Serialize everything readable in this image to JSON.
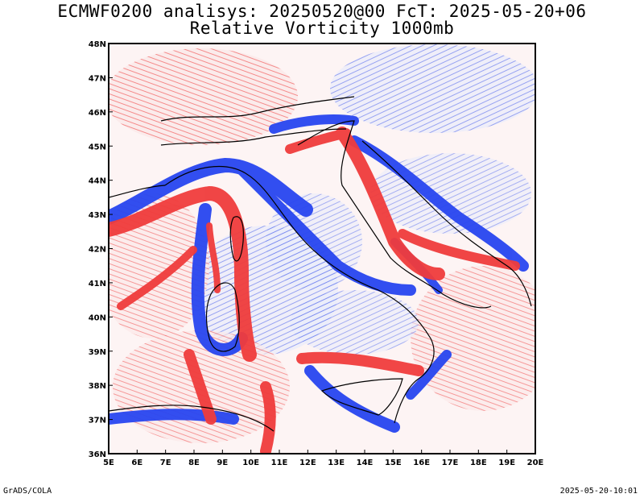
{
  "title_line1": "ECMWF0200 analisys: 20250520@00 FcT: 2025-05-20+06",
  "title_line2": "Relative Vorticity 1000mb",
  "footer_left": "GrADS/COLA",
  "footer_right": "2025-05-20-10:01",
  "axes": {
    "lon_ticks": [
      "5E",
      "6E",
      "7E",
      "8E",
      "9E",
      "10E",
      "11E",
      "12E",
      "13E",
      "14E",
      "15E",
      "16E",
      "17E",
      "18E",
      "19E",
      "20E"
    ],
    "lat_ticks": [
      "36N",
      "37N",
      "38N",
      "39N",
      "40N",
      "41N",
      "42N",
      "43N",
      "44N",
      "45N",
      "46N",
      "47N",
      "48N"
    ],
    "lon_range": [
      5,
      20
    ],
    "lat_range": [
      36,
      48
    ]
  },
  "colors": {
    "positive_vorticity": "#f03c3c",
    "negative_vorticity": "#2846f0",
    "coastline": "#000000"
  }
}
